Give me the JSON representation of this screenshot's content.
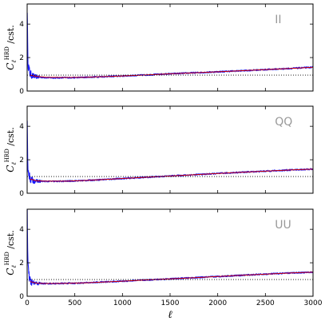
{
  "chart_data": [
    {
      "type": "line",
      "panel_label": "II",
      "ylabel": "C_ℓ^HRD /cst.",
      "xlim": [
        0,
        3000
      ],
      "ylim": [
        0,
        5.2
      ],
      "yticks": [
        "0",
        "2",
        "4"
      ],
      "reference_level": 0.95,
      "series": [
        {
          "color": "#1a1aff",
          "x": [
            1,
            5,
            10,
            20,
            30,
            40,
            60,
            80,
            100,
            150,
            200,
            300,
            400,
            500,
            600,
            800,
            1000,
            1200,
            1500,
            1800,
            2000,
            2200,
            2500,
            2800,
            3000
          ],
          "y": [
            5.0,
            2.6,
            1.7,
            1.25,
            1.05,
            0.98,
            0.9,
            0.87,
            0.85,
            0.82,
            0.8,
            0.79,
            0.8,
            0.8,
            0.82,
            0.86,
            0.9,
            0.95,
            1.03,
            1.1,
            1.15,
            1.2,
            1.28,
            1.36,
            1.42
          ]
        },
        {
          "color": "#cc0000",
          "x": [
            30,
            100,
            200,
            400,
            600,
            800,
            1000,
            1200,
            1500,
            1800,
            2000,
            2200,
            2500,
            2800,
            3000
          ],
          "y": [
            0.95,
            0.87,
            0.82,
            0.81,
            0.82,
            0.86,
            0.9,
            0.95,
            1.03,
            1.1,
            1.15,
            1.2,
            1.28,
            1.36,
            1.42
          ]
        }
      ]
    },
    {
      "type": "line",
      "panel_label": "QQ",
      "ylabel": "C_ℓ^HRD /cst.",
      "xlim": [
        0,
        3000
      ],
      "ylim": [
        0,
        5.2
      ],
      "yticks": [
        "0",
        "2",
        "4"
      ],
      "reference_level": 1.0,
      "series": [
        {
          "color": "#1a1aff",
          "x": [
            1,
            5,
            10,
            20,
            30,
            40,
            60,
            80,
            100,
            150,
            200,
            300,
            400,
            500,
            600,
            800,
            1000,
            1200,
            1500,
            1800,
            2000,
            2200,
            2500,
            2800,
            3000
          ],
          "y": [
            4.0,
            2.2,
            1.55,
            1.1,
            0.92,
            0.82,
            0.76,
            0.73,
            0.72,
            0.72,
            0.71,
            0.71,
            0.72,
            0.74,
            0.76,
            0.82,
            0.88,
            0.94,
            1.03,
            1.12,
            1.18,
            1.24,
            1.32,
            1.4,
            1.44
          ]
        },
        {
          "color": "#cc0000",
          "x": [
            30,
            100,
            200,
            400,
            600,
            800,
            1000,
            1200,
            1500,
            1800,
            2000,
            2200,
            2500,
            2800,
            3000
          ],
          "y": [
            0.85,
            0.74,
            0.72,
            0.72,
            0.76,
            0.82,
            0.88,
            0.94,
            1.03,
            1.12,
            1.18,
            1.24,
            1.32,
            1.4,
            1.44
          ]
        }
      ]
    },
    {
      "type": "line",
      "panel_label": "UU",
      "ylabel": "C_ℓ^HRD /cst.",
      "xlim": [
        0,
        3000
      ],
      "ylim": [
        0,
        5.2
      ],
      "yticks": [
        "0",
        "2",
        "4"
      ],
      "xticks": [
        "0",
        "500",
        "1000",
        "1500",
        "2000",
        "2500",
        "3000"
      ],
      "xlabel": "ℓ",
      "reference_level": 1.0,
      "series": [
        {
          "color": "#1a1aff",
          "x": [
            1,
            5,
            10,
            20,
            30,
            40,
            60,
            80,
            100,
            150,
            200,
            300,
            400,
            500,
            600,
            800,
            1000,
            1200,
            1500,
            1800,
            2000,
            2200,
            2500,
            2800,
            3000
          ],
          "y": [
            5.1,
            2.7,
            1.7,
            1.15,
            0.95,
            0.86,
            0.8,
            0.78,
            0.77,
            0.76,
            0.76,
            0.76,
            0.77,
            0.78,
            0.8,
            0.85,
            0.9,
            0.96,
            1.04,
            1.12,
            1.18,
            1.24,
            1.32,
            1.4,
            1.44
          ]
        },
        {
          "color": "#cc0000",
          "x": [
            30,
            100,
            200,
            400,
            600,
            800,
            1000,
            1200,
            1500,
            1800,
            2000,
            2200,
            2500,
            2800,
            3000
          ],
          "y": [
            0.88,
            0.78,
            0.76,
            0.77,
            0.8,
            0.85,
            0.9,
            0.96,
            1.04,
            1.12,
            1.18,
            1.24,
            1.32,
            1.4,
            1.44
          ]
        }
      ]
    }
  ]
}
